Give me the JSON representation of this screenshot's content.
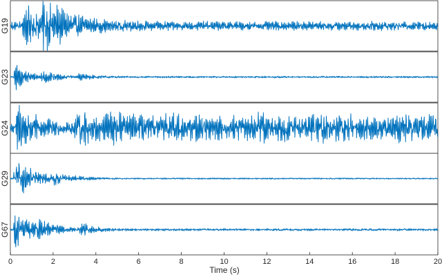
{
  "chart_data": {
    "type": "line",
    "xlabel": "Time (s)",
    "xlim": [
      0,
      20
    ],
    "x_ticks": [
      0,
      2,
      4,
      6,
      8,
      10,
      12,
      14,
      16,
      18,
      20
    ],
    "x_tick_labels": [
      "0",
      "2",
      "4",
      "6",
      "8",
      "10",
      "12",
      "14",
      "16",
      "18",
      "20"
    ],
    "grid": false,
    "line_color": "#0072BD",
    "series": [
      {
        "name": "G19",
        "baseline_level": 0.2,
        "events": [
          {
            "t": 0.6,
            "amp": 0.85,
            "decay": 0.9
          },
          {
            "t": 1.5,
            "amp": 1.0,
            "decay": 1.2
          }
        ],
        "late_modulation": 0.0
      },
      {
        "name": "G23",
        "baseline_level": 0.04,
        "events": [
          {
            "t": 0.2,
            "amp": 0.6,
            "decay": 0.6
          },
          {
            "t": 1.5,
            "amp": 0.35,
            "decay": 0.5
          },
          {
            "t": 3.2,
            "amp": 0.15,
            "decay": 0.6
          }
        ],
        "late_modulation": 0.0
      },
      {
        "name": "G24",
        "baseline_level": 0.25,
        "events": [
          {
            "t": 0.3,
            "amp": 1.0,
            "decay": 0.8
          },
          {
            "t": 3.0,
            "amp": 0.25,
            "decay": 1.5
          }
        ],
        "late_modulation": 0.45
      },
      {
        "name": "G29",
        "baseline_level": 0.03,
        "events": [
          {
            "t": 0.2,
            "amp": 0.95,
            "decay": 0.9
          },
          {
            "t": 2.0,
            "amp": 0.2,
            "decay": 0.8
          }
        ],
        "late_modulation": 0.0
      },
      {
        "name": "G67",
        "baseline_level": 0.05,
        "events": [
          {
            "t": 0.2,
            "amp": 0.9,
            "decay": 0.7
          },
          {
            "t": 1.3,
            "amp": 0.45,
            "decay": 0.6
          },
          {
            "t": 3.3,
            "amp": 0.3,
            "decay": 0.5
          }
        ],
        "late_modulation": 0.0
      }
    ]
  }
}
